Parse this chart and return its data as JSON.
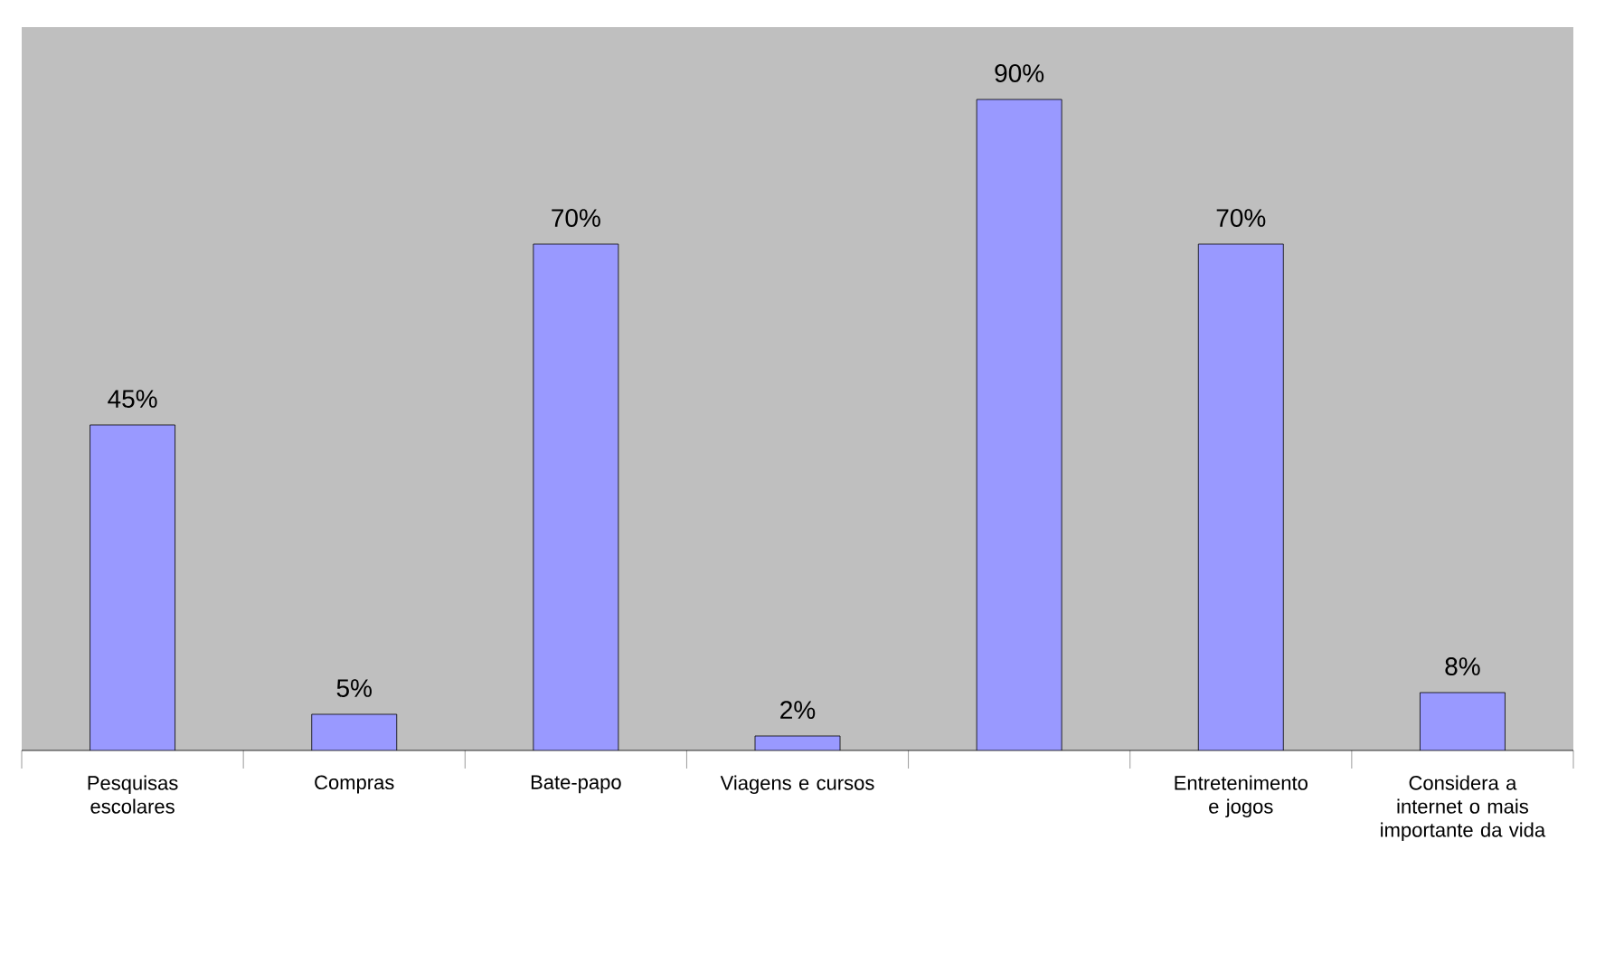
{
  "chart_data": {
    "type": "bar",
    "categories": [
      "Pesquisas escolares",
      "Compras",
      "Bate-papo",
      "Viagens e cursos",
      null,
      "Entretenimento e jogos",
      "Considera a internet o mais importante da vida"
    ],
    "values": [
      45,
      5,
      70,
      2,
      90,
      70,
      8
    ],
    "value_labels": [
      "45%",
      "5%",
      "70%",
      "2%",
      "90%",
      "70%",
      "8%"
    ],
    "color": "#9999ff",
    "ylim": [
      0,
      100
    ]
  }
}
